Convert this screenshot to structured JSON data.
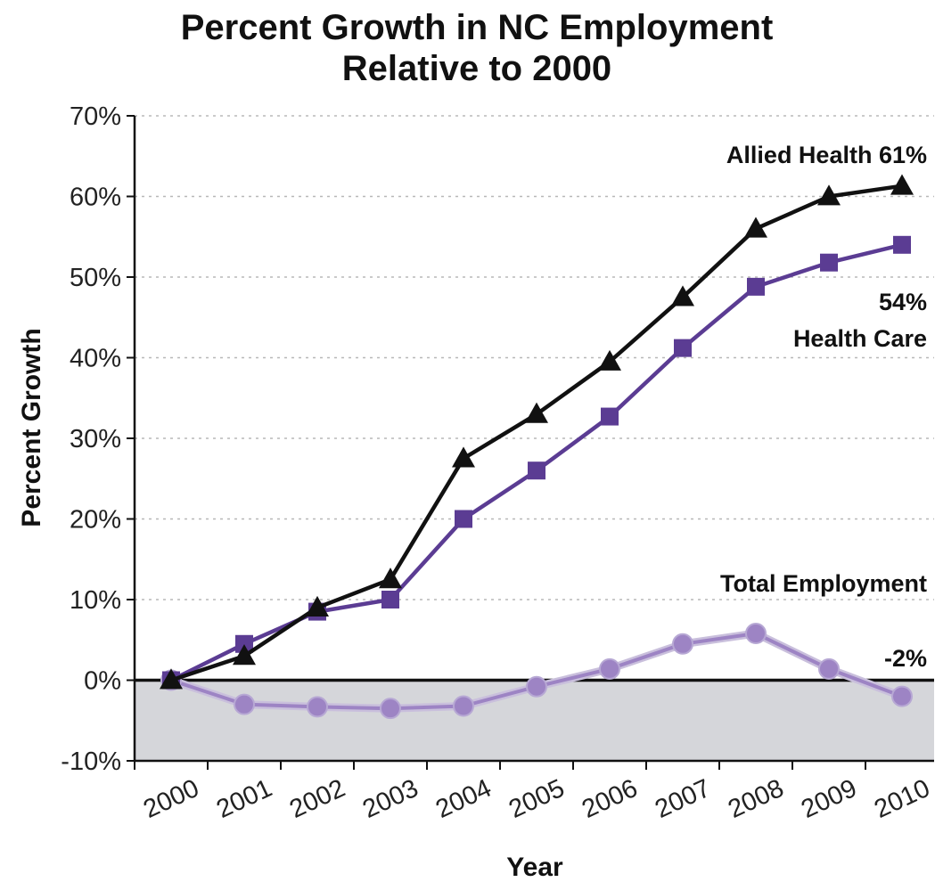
{
  "chart_data": {
    "type": "line",
    "title_lines": [
      "Percent Growth in NC Employment",
      "Relative to 2000"
    ],
    "xlabel": "Year",
    "ylabel": "Percent Growth",
    "ylim": [
      -10,
      70
    ],
    "yticks": [
      -10,
      0,
      10,
      20,
      30,
      40,
      50,
      60,
      70
    ],
    "ytick_labels": [
      "-10%",
      "0%",
      "10%",
      "20%",
      "30%",
      "40%",
      "50%",
      "60%",
      "70%"
    ],
    "x": [
      "2000",
      "2001",
      "2002",
      "2003",
      "2004",
      "2005",
      "2006",
      "2007",
      "2008",
      "2009",
      "2010"
    ],
    "grid": "horizontal dotted",
    "negative_region_shaded": true,
    "series": [
      {
        "key": "allied",
        "marker": "triangle",
        "color": "#111111",
        "values": [
          0,
          3,
          9,
          12.5,
          27.5,
          33,
          39.5,
          47.5,
          56,
          60,
          61.3
        ]
      },
      {
        "key": "healthcare",
        "marker": "square",
        "color": "#5b3c93",
        "values": [
          0,
          4.5,
          8.5,
          10,
          20,
          26,
          32.7,
          41.2,
          48.8,
          51.8,
          54
        ]
      },
      {
        "key": "total",
        "marker": "circle",
        "color": "#9d84c4",
        "values": [
          0,
          -3,
          -3.3,
          -3.5,
          -3.2,
          -0.8,
          1.4,
          4.5,
          5.8,
          1.4,
          -2
        ]
      }
    ],
    "annotations": {
      "allied": "Allied Health 61%",
      "healthcare_value": "54%",
      "healthcare_name": "Health Care",
      "total_name": "Total Employment",
      "total_value": "-2%"
    },
    "colors": {
      "shade": "#d5d6da",
      "grid": "#b8b8b8",
      "axis": "#111111"
    }
  }
}
